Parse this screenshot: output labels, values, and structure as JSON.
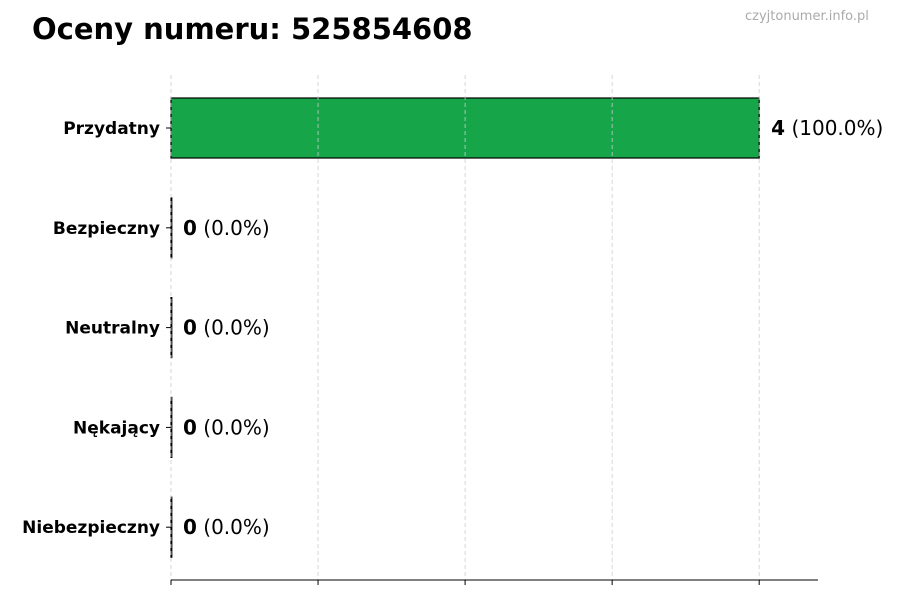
{
  "watermark": "czyjtonumer.info.pl",
  "chart_data": {
    "type": "bar",
    "orientation": "horizontal",
    "title": "Oceny numeru: 525854608",
    "categories": [
      "Przydatny",
      "Bezpieczny",
      "Neutralny",
      "Nękający",
      "Niebezpieczny"
    ],
    "values": [
      4,
      0,
      0,
      0,
      0
    ],
    "percent_labels": [
      "(100.0%)",
      "(0.0%)",
      "(0.0%)",
      "(0.0%)",
      "(0.0%)"
    ],
    "value_labels": [
      "4",
      "0",
      "0",
      "0",
      "0"
    ],
    "xlabel": "",
    "ylabel": "",
    "xlim": [
      0,
      4.4
    ],
    "xticks": [
      0,
      1,
      2,
      3,
      4
    ],
    "xtick_labels_shown": false,
    "grid": "x, dashed",
    "bar_color": "#17a54a",
    "bar_edge_color": "#000000"
  }
}
